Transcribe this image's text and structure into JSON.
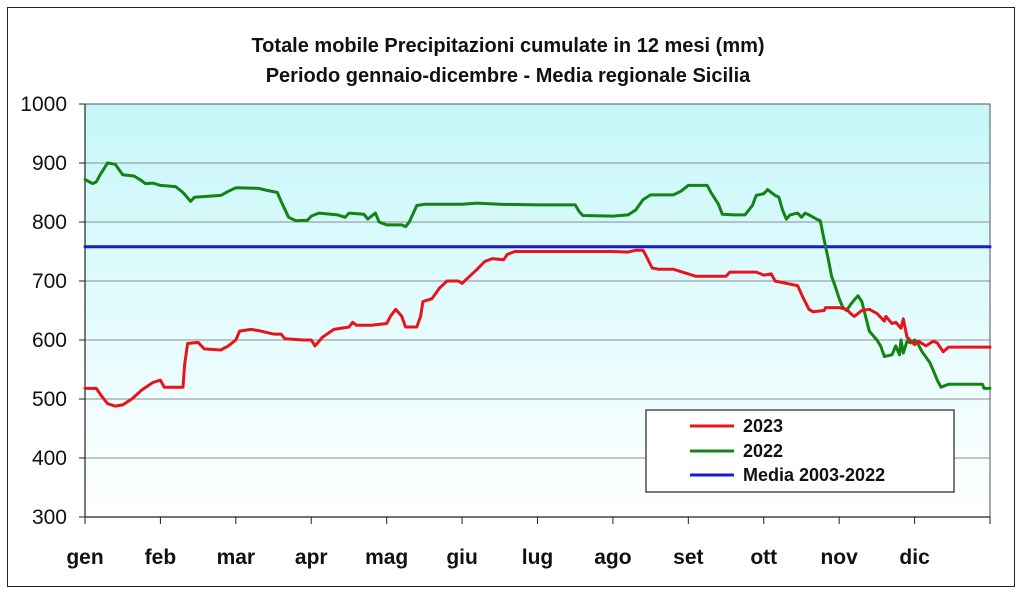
{
  "chart_data": {
    "type": "line",
    "title": "Totale mobile Precipitazioni cumulate in 12 mesi (mm)",
    "subtitle": "Periodo gennaio-dicembre - Media regionale Sicilia",
    "xlabel": "",
    "ylabel": "",
    "ylim": [
      300,
      1000
    ],
    "yticks": [
      "300",
      "400",
      "500",
      "600",
      "700",
      "800",
      "900",
      "1000"
    ],
    "xlim": [
      0,
      12
    ],
    "categories": [
      "gen",
      "feb",
      "mar",
      "apr",
      "mag",
      "giu",
      "lug",
      "ago",
      "set",
      "ott",
      "nov",
      "dic"
    ],
    "grid": true,
    "legend_position": "bottom-right",
    "series": [
      {
        "name": "2023",
        "color": "#e8141b",
        "points": [
          [
            0.0,
            518
          ],
          [
            0.15,
            518
          ],
          [
            0.22,
            505
          ],
          [
            0.3,
            492
          ],
          [
            0.4,
            488
          ],
          [
            0.5,
            490
          ],
          [
            0.62,
            500
          ],
          [
            0.75,
            515
          ],
          [
            0.9,
            528
          ],
          [
            1.0,
            532
          ],
          [
            1.05,
            520
          ],
          [
            1.3,
            520
          ],
          [
            1.32,
            558
          ],
          [
            1.36,
            594
          ],
          [
            1.5,
            596
          ],
          [
            1.58,
            585
          ],
          [
            1.8,
            583
          ],
          [
            1.9,
            590
          ],
          [
            2.0,
            600
          ],
          [
            2.05,
            615
          ],
          [
            2.2,
            618
          ],
          [
            2.3,
            616
          ],
          [
            2.5,
            610
          ],
          [
            2.6,
            610
          ],
          [
            2.65,
            602
          ],
          [
            2.9,
            600
          ],
          [
            3.0,
            600
          ],
          [
            3.05,
            590
          ],
          [
            3.15,
            605
          ],
          [
            3.3,
            618
          ],
          [
            3.5,
            622
          ],
          [
            3.55,
            630
          ],
          [
            3.6,
            625
          ],
          [
            3.8,
            625
          ],
          [
            4.0,
            628
          ],
          [
            4.05,
            640
          ],
          [
            4.12,
            652
          ],
          [
            4.2,
            640
          ],
          [
            4.25,
            622
          ],
          [
            4.4,
            622
          ],
          [
            4.45,
            640
          ],
          [
            4.48,
            665
          ],
          [
            4.6,
            670
          ],
          [
            4.7,
            688
          ],
          [
            4.8,
            700
          ],
          [
            4.95,
            700
          ],
          [
            5.0,
            696
          ],
          [
            5.1,
            708
          ],
          [
            5.2,
            720
          ],
          [
            5.3,
            733
          ],
          [
            5.4,
            738
          ],
          [
            5.55,
            736
          ],
          [
            5.6,
            745
          ],
          [
            5.7,
            750
          ],
          [
            6.0,
            750
          ],
          [
            7.0,
            750
          ],
          [
            7.2,
            749
          ],
          [
            7.3,
            752
          ],
          [
            7.4,
            752
          ],
          [
            7.45,
            740
          ],
          [
            7.52,
            722
          ],
          [
            7.6,
            720
          ],
          [
            7.8,
            720
          ],
          [
            7.9,
            716
          ],
          [
            8.0,
            712
          ],
          [
            8.1,
            708
          ],
          [
            8.5,
            708
          ],
          [
            8.55,
            715
          ],
          [
            8.9,
            715
          ],
          [
            9.0,
            710
          ],
          [
            9.1,
            712
          ],
          [
            9.15,
            700
          ],
          [
            9.3,
            696
          ],
          [
            9.45,
            692
          ],
          [
            9.52,
            672
          ],
          [
            9.6,
            652
          ],
          [
            9.65,
            648
          ],
          [
            9.8,
            650
          ],
          [
            9.82,
            655
          ],
          [
            10.0,
            655
          ],
          [
            10.1,
            652
          ],
          [
            10.15,
            645
          ],
          [
            10.2,
            640
          ],
          [
            10.3,
            650
          ],
          [
            10.4,
            652
          ],
          [
            10.5,
            645
          ],
          [
            10.6,
            632
          ],
          [
            10.62,
            640
          ],
          [
            10.7,
            628
          ],
          [
            10.75,
            630
          ],
          [
            10.82,
            620
          ],
          [
            10.85,
            636
          ],
          [
            10.9,
            605
          ],
          [
            11.0,
            592
          ],
          [
            11.05,
            598
          ],
          [
            11.15,
            590
          ],
          [
            11.25,
            598
          ],
          [
            11.3,
            595
          ],
          [
            11.38,
            580
          ],
          [
            11.45,
            588
          ],
          [
            11.6,
            588
          ],
          [
            12.0,
            588
          ]
        ]
      },
      {
        "name": "2022",
        "color": "#138313",
        "points": [
          [
            0.0,
            872
          ],
          [
            0.1,
            865
          ],
          [
            0.15,
            868
          ],
          [
            0.2,
            880
          ],
          [
            0.3,
            900
          ],
          [
            0.4,
            898
          ],
          [
            0.5,
            880
          ],
          [
            0.65,
            878
          ],
          [
            0.75,
            870
          ],
          [
            0.8,
            865
          ],
          [
            0.9,
            866
          ],
          [
            1.0,
            862
          ],
          [
            1.2,
            860
          ],
          [
            1.3,
            850
          ],
          [
            1.4,
            835
          ],
          [
            1.45,
            842
          ],
          [
            1.8,
            845
          ],
          [
            1.9,
            852
          ],
          [
            2.0,
            858
          ],
          [
            2.3,
            857
          ],
          [
            2.4,
            854
          ],
          [
            2.55,
            850
          ],
          [
            2.6,
            835
          ],
          [
            2.7,
            808
          ],
          [
            2.8,
            802
          ],
          [
            2.95,
            803
          ],
          [
            3.0,
            810
          ],
          [
            3.1,
            815
          ],
          [
            3.35,
            812
          ],
          [
            3.45,
            808
          ],
          [
            3.5,
            815
          ],
          [
            3.7,
            813
          ],
          [
            3.75,
            805
          ],
          [
            3.85,
            815
          ],
          [
            3.9,
            800
          ],
          [
            4.0,
            795
          ],
          [
            4.2,
            795
          ],
          [
            4.25,
            792
          ],
          [
            4.3,
            800
          ],
          [
            4.4,
            828
          ],
          [
            4.5,
            830
          ],
          [
            5.0,
            830
          ],
          [
            5.2,
            832
          ],
          [
            5.5,
            830
          ],
          [
            6.0,
            829
          ],
          [
            6.5,
            829
          ],
          [
            6.55,
            818
          ],
          [
            6.6,
            811
          ],
          [
            7.0,
            810
          ],
          [
            7.2,
            812
          ],
          [
            7.3,
            820
          ],
          [
            7.4,
            838
          ],
          [
            7.5,
            846
          ],
          [
            7.8,
            846
          ],
          [
            7.9,
            852
          ],
          [
            8.0,
            862
          ],
          [
            8.25,
            862
          ],
          [
            8.3,
            850
          ],
          [
            8.4,
            830
          ],
          [
            8.45,
            813
          ],
          [
            8.6,
            812
          ],
          [
            8.75,
            812
          ],
          [
            8.8,
            820
          ],
          [
            8.85,
            828
          ],
          [
            8.9,
            845
          ],
          [
            9.0,
            848
          ],
          [
            9.05,
            855
          ],
          [
            9.15,
            845
          ],
          [
            9.2,
            842
          ],
          [
            9.25,
            820
          ],
          [
            9.3,
            805
          ],
          [
            9.35,
            812
          ],
          [
            9.45,
            815
          ],
          [
            9.5,
            808
          ],
          [
            9.55,
            815
          ],
          [
            9.6,
            812
          ],
          [
            9.7,
            805
          ],
          [
            9.75,
            802
          ],
          [
            9.8,
            770
          ],
          [
            9.85,
            740
          ],
          [
            9.9,
            708
          ],
          [
            9.95,
            690
          ],
          [
            10.0,
            670
          ],
          [
            10.05,
            655
          ],
          [
            10.1,
            650
          ],
          [
            10.15,
            660
          ],
          [
            10.2,
            668
          ],
          [
            10.25,
            675
          ],
          [
            10.3,
            665
          ],
          [
            10.35,
            640
          ],
          [
            10.4,
            615
          ],
          [
            10.5,
            600
          ],
          [
            10.55,
            590
          ],
          [
            10.6,
            572
          ],
          [
            10.7,
            575
          ],
          [
            10.75,
            590
          ],
          [
            10.8,
            575
          ],
          [
            10.82,
            600
          ],
          [
            10.85,
            578
          ],
          [
            10.9,
            598
          ],
          [
            10.95,
            595
          ],
          [
            11.0,
            600
          ],
          [
            11.05,
            592
          ],
          [
            11.1,
            580
          ],
          [
            11.2,
            562
          ],
          [
            11.25,
            548
          ],
          [
            11.3,
            532
          ],
          [
            11.35,
            520
          ],
          [
            11.45,
            525
          ],
          [
            11.9,
            525
          ],
          [
            11.92,
            518
          ],
          [
            12.0,
            518
          ]
        ]
      },
      {
        "name": "Media 2003-2022",
        "color": "#1a1ad0",
        "points": [
          [
            0,
            758
          ],
          [
            12,
            758
          ]
        ]
      }
    ]
  }
}
